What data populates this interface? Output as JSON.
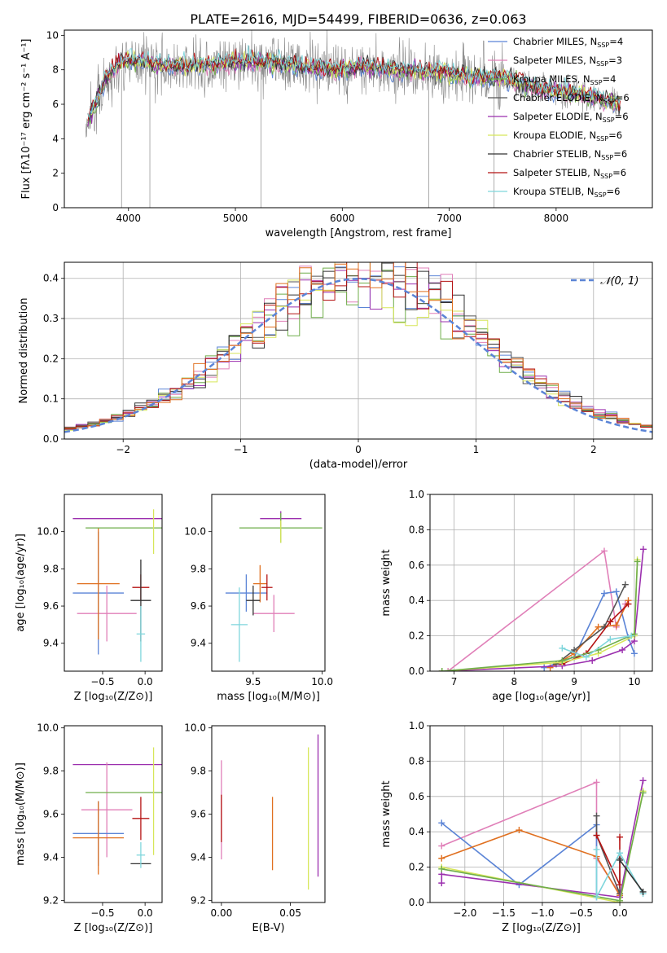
{
  "page_title": "PLATE=2616, MJD=54499, FIBERID=0636, z=0.063",
  "colors": {
    "Chabrier MILES": "#5b84d6",
    "Salpeter MILES": "#e07fb8",
    "Kroupa MILES": "#6fae4a",
    "Chabrier ELODIE": "#555555",
    "Salpeter ELODIE": "#9b2fae",
    "Kroupa ELODIE": "#d7e65a",
    "Chabrier STELIB": "#333333",
    "Salpeter STELIB": "#b51313",
    "Kroupa STELIB": "#7fd6dc",
    "orange": "#e07020",
    "data_gray": "#888888",
    "normal_curve": "#5b84d6"
  },
  "chart_data": [
    {
      "id": "spectrum",
      "type": "line",
      "title": "PLATE=2616, MJD=54499, FIBERID=0636, z=0.063",
      "xlabel": "wavelength [Angstrom, rest frame]",
      "ylabel": "Flux [fλ10⁻¹⁷ erg cm⁻² s⁻¹ A⁻¹]",
      "xlim": [
        3400,
        8900
      ],
      "ylim": [
        0,
        10.3
      ],
      "xticks": [
        "4000",
        "5000",
        "6000",
        "7000",
        "8000"
      ],
      "yticks": [
        "0",
        "2",
        "4",
        "6",
        "8",
        "10"
      ],
      "grid": false,
      "legend_position": "right",
      "legend": [
        "Chabrier MILES, N<sub>SSP</sub>=4",
        "Salpeter MILES, N<sub>SSP</sub>=3",
        "Kroupa MILES, N<sub>SSP</sub>=4",
        "Chabrier ELODIE, N<sub>SSP</sub>=6",
        "Salpeter ELODIE, N<sub>SSP</sub>=6",
        "Kroupa ELODIE, N<sub>SSP</sub>=6",
        "Chabrier STELIB, N<sub>SSP</sub>=6",
        "Salpeter STELIB, N<sub>SSP</sub>=6",
        "Kroupa STELIB, N<sub>SSP</sub>=6"
      ],
      "series_colors": [
        "#5b84d6",
        "#e07fb8",
        "#6fae4a",
        "#555555",
        "#9b2fae",
        "#d7e65a",
        "#333333",
        "#b51313",
        "#7fd6dc"
      ],
      "continuum": {
        "x": [
          3600,
          3700,
          3800,
          3900,
          4000,
          4100,
          4300,
          4500,
          4800,
          5000,
          5200,
          5500,
          5800,
          6000,
          6200,
          6500,
          6800,
          7000,
          7200,
          7500,
          7800,
          8000,
          8200,
          8400,
          8600
        ],
        "y": [
          4.8,
          6.2,
          7.6,
          8.3,
          8.6,
          8.5,
          8.3,
          8.2,
          8.3,
          8.4,
          8.5,
          8.3,
          8.1,
          8.0,
          8.2,
          8.0,
          7.9,
          7.8,
          7.6,
          7.5,
          7.0,
          6.8,
          6.6,
          6.3,
          6.0
        ]
      }
    },
    {
      "id": "residuals",
      "type": "histogram",
      "xlabel": "(data-model)/error",
      "ylabel": "Normed distribution",
      "xlim": [
        -2.5,
        2.5
      ],
      "ylim": [
        0,
        0.44
      ],
      "xticks": [
        "−2",
        "−1",
        "0",
        "1",
        "2"
      ],
      "yticks": [
        "0.0",
        "0.1",
        "0.2",
        "0.3",
        "0.4"
      ],
      "grid": true,
      "legend_position": "top-right",
      "legend": [
        "𝒩(0, 1)"
      ],
      "bins": [
        -2.5,
        2.5,
        50
      ],
      "series_count": 9,
      "series_colors": [
        "#5b84d6",
        "#e07fb8",
        "#6fae4a",
        "#555555",
        "#9b2fae",
        "#d7e65a",
        "#333333",
        "#b51313",
        "#e07020"
      ]
    },
    {
      "id": "age-vs-Z",
      "type": "errorbar",
      "xlabel": "Z [log₁₀(Z/Z⊙)]",
      "ylabel": "age  [log₁₀(age/yr)]",
      "xlim": [
        -0.95,
        0.2
      ],
      "ylim": [
        9.25,
        10.2
      ],
      "xticks": [
        "−0.5",
        "0.0"
      ],
      "yticks": [
        "9.4",
        "9.6",
        "9.8",
        "10.0"
      ],
      "points": [
        {
          "c": "#5b84d6",
          "x": -0.55,
          "xe": 0.3,
          "y": 9.67,
          "ye": 0.33
        },
        {
          "c": "#e07fb8",
          "x": -0.45,
          "xe": 0.35,
          "y": 9.56,
          "ye": 0.15
        },
        {
          "c": "#e07020",
          "x": -0.55,
          "xe": 0.25,
          "y": 9.72,
          "ye": 0.3
        },
        {
          "c": "#9b2fae",
          "x": -0.3,
          "xe": 0.55,
          "y": 10.07,
          "ye": 0.0
        },
        {
          "c": "#6fae4a",
          "x": -0.25,
          "xe": 0.45,
          "y": 10.02,
          "ye": 0.0
        },
        {
          "c": "#d7e65a",
          "x": 0.1,
          "xe": 0.0,
          "y": 10.0,
          "ye": 0.12
        },
        {
          "c": "#b51313",
          "x": -0.05,
          "xe": 0.1,
          "y": 9.7,
          "ye": 0.07
        },
        {
          "c": "#333333",
          "x": -0.05,
          "xe": 0.12,
          "y": 9.63,
          "ye": 0.22
        },
        {
          "c": "#7fd6dc",
          "x": -0.05,
          "xe": 0.05,
          "y": 9.45,
          "ye": 0.15
        }
      ]
    },
    {
      "id": "age-vs-mass",
      "type": "errorbar",
      "xlabel": "mass [log₁₀(M/M⊙)]",
      "ylabel": "",
      "xlim": [
        9.2,
        10.02
      ],
      "ylim": [
        9.25,
        10.2
      ],
      "xticks": [
        "9.5",
        "10.0"
      ],
      "yticks": [
        "9.4",
        "9.6",
        "9.8",
        "10.0"
      ],
      "points": [
        {
          "c": "#5b84d6",
          "x": 9.45,
          "xe": 0.15,
          "y": 9.67,
          "ye": 0.1
        },
        {
          "c": "#e07fb8",
          "x": 9.65,
          "xe": 0.15,
          "y": 9.56,
          "ye": 0.1
        },
        {
          "c": "#e07020",
          "x": 9.55,
          "xe": 0.05,
          "y": 9.72,
          "ye": 0.1
        },
        {
          "c": "#9b2fae",
          "x": 9.7,
          "xe": 0.15,
          "y": 10.07,
          "ye": 0.04
        },
        {
          "c": "#6fae4a",
          "x": 9.7,
          "xe": 0.3,
          "y": 10.02,
          "ye": 0.08
        },
        {
          "c": "#d7e65a",
          "x": 9.7,
          "xe": 0.0,
          "y": 10.0,
          "ye": 0.06
        },
        {
          "c": "#b51313",
          "x": 9.6,
          "xe": 0.04,
          "y": 9.7,
          "ye": 0.07
        },
        {
          "c": "#333333",
          "x": 9.5,
          "xe": 0.05,
          "y": 9.63,
          "ye": 0.08
        },
        {
          "c": "#7fd6dc",
          "x": 9.4,
          "xe": 0.06,
          "y": 9.5,
          "ye": 0.2
        }
      ]
    },
    {
      "id": "mass-weight-vs-age",
      "type": "line",
      "xlabel": "age  [log₁₀(age/yr)]",
      "ylabel": "mass weight",
      "xlim": [
        6.6,
        10.3
      ],
      "ylim": [
        0,
        1.0
      ],
      "xticks": [
        "7",
        "8",
        "9",
        "10"
      ],
      "yticks": [
        "0.0",
        "0.2",
        "0.4",
        "0.6",
        "0.8",
        "1.0"
      ],
      "grid": true,
      "series": [
        {
          "c": "#e07fb8",
          "x": [
            6.9,
            9.5,
            9.7,
            9.85
          ],
          "y": [
            0.0,
            0.68,
            0.25,
            0.38
          ]
        },
        {
          "c": "#5b84d6",
          "x": [
            8.5,
            9.0,
            9.5,
            9.7,
            9.9,
            10.0
          ],
          "y": [
            0.02,
            0.08,
            0.44,
            0.45,
            0.19,
            0.1
          ]
        },
        {
          "c": "#e07020",
          "x": [
            8.6,
            9.0,
            9.4,
            9.7,
            9.9
          ],
          "y": [
            0.02,
            0.1,
            0.25,
            0.26,
            0.4
          ]
        },
        {
          "c": "#555555",
          "x": [
            8.7,
            9.0,
            9.5,
            9.85
          ],
          "y": [
            0.04,
            0.12,
            0.25,
            0.49
          ]
        },
        {
          "c": "#b51313",
          "x": [
            8.8,
            9.2,
            9.6,
            9.9
          ],
          "y": [
            0.04,
            0.1,
            0.28,
            0.38
          ]
        },
        {
          "c": "#9b2fae",
          "x": [
            6.8,
            8.8,
            9.3,
            9.8,
            10.0,
            10.15
          ],
          "y": [
            0.0,
            0.03,
            0.06,
            0.12,
            0.17,
            0.69
          ]
        },
        {
          "c": "#d7e65a",
          "x": [
            6.8,
            8.8,
            9.4,
            10.0,
            10.05
          ],
          "y": [
            0.0,
            0.05,
            0.1,
            0.2,
            0.63
          ]
        },
        {
          "c": "#6fae4a",
          "x": [
            6.8,
            8.8,
            9.4,
            10.0,
            10.05
          ],
          "y": [
            0.0,
            0.06,
            0.12,
            0.21,
            0.62
          ]
        },
        {
          "c": "#7fd6dc",
          "x": [
            8.8,
            9.2,
            9.6,
            9.95
          ],
          "y": [
            0.13,
            0.08,
            0.18,
            0.2
          ]
        }
      ]
    },
    {
      "id": "mass-vs-Z",
      "type": "errorbar",
      "xlabel": "Z [log₁₀(Z/Z⊙)]",
      "ylabel": "mass [log₁₀(M/M⊙)]",
      "xlim": [
        -0.95,
        0.2
      ],
      "ylim": [
        9.19,
        10.01
      ],
      "xticks": [
        "−0.5",
        "0.0"
      ],
      "yticks": [
        "9.2",
        "9.4",
        "9.6",
        "9.8",
        "10.0"
      ],
      "points": [
        {
          "c": "#9b2fae",
          "x": -0.3,
          "xe": 0.55,
          "y": 9.83,
          "ye": 0.0
        },
        {
          "c": "#e07fb8",
          "x": -0.45,
          "xe": 0.3,
          "y": 9.62,
          "ye": 0.22
        },
        {
          "c": "#6fae4a",
          "x": -0.25,
          "xe": 0.45,
          "y": 9.7,
          "ye": 0.0
        },
        {
          "c": "#5b84d6",
          "x": -0.55,
          "xe": 0.3,
          "y": 9.51,
          "ye": 0.15
        },
        {
          "c": "#e07020",
          "x": -0.55,
          "xe": 0.3,
          "y": 9.49,
          "ye": 0.17
        },
        {
          "c": "#d7e65a",
          "x": 0.1,
          "xe": 0.0,
          "y": 9.66,
          "ye": 0.25
        },
        {
          "c": "#b51313",
          "x": -0.05,
          "xe": 0.1,
          "y": 9.58,
          "ye": 0.1
        },
        {
          "c": "#333333",
          "x": -0.05,
          "xe": 0.12,
          "y": 9.37,
          "ye": 0.0
        },
        {
          "c": "#7fd6dc",
          "x": -0.05,
          "xe": 0.05,
          "y": 9.41,
          "ye": 0.06
        }
      ]
    },
    {
      "id": "mass-vs-EBV",
      "type": "errorbar",
      "xlabel": "E(B-V)",
      "ylabel": "",
      "xlim": [
        -0.007,
        0.075
      ],
      "ylim": [
        9.19,
        10.01
      ],
      "xticks": [
        "0.00",
        "0.05"
      ],
      "yticks": [
        "9.2",
        "9.4",
        "9.6",
        "9.8",
        "10.0"
      ],
      "points": [
        {
          "c": "#e07fb8",
          "x": 0.0,
          "xe": 0.0,
          "y": 9.62,
          "ye": 0.23
        },
        {
          "c": "#b51313",
          "x": 0.0,
          "xe": 0.0,
          "y": 9.58,
          "ye": 0.11
        },
        {
          "c": "#e07020",
          "x": 0.037,
          "xe": 0.0,
          "y": 9.51,
          "ye": 0.17
        },
        {
          "c": "#d7e65a",
          "x": 0.063,
          "xe": 0.0,
          "y": 9.58,
          "ye": 0.33
        },
        {
          "c": "#9b2fae",
          "x": 0.07,
          "xe": 0.0,
          "y": 9.64,
          "ye": 0.33
        }
      ]
    },
    {
      "id": "mass-weight-vs-Z",
      "type": "line",
      "xlabel": "Z [log₁₀(Z/Z⊙)]",
      "ylabel": "mass weight",
      "xlim": [
        -2.45,
        0.42
      ],
      "ylim": [
        0,
        1.0
      ],
      "xticks": [
        "−2.0",
        "−1.5",
        "−1.0",
        "−0.5",
        "0.0"
      ],
      "yticks": [
        "0.0",
        "0.2",
        "0.4",
        "0.6",
        "0.8",
        "1.0"
      ],
      "grid": true,
      "series": [
        {
          "c": "#e07fb8",
          "x": [
            -2.3,
            -0.3,
            -0.3,
            0.0
          ],
          "y": [
            0.32,
            0.68,
            0.25,
            0.05
          ]
        },
        {
          "c": "#5b84d6",
          "x": [
            -2.3,
            -1.3,
            -0.3,
            -0.3
          ],
          "y": [
            0.45,
            0.1,
            0.44,
            0.03
          ]
        },
        {
          "c": "#e07020",
          "x": [
            -2.3,
            -1.3,
            -0.3,
            0.0
          ],
          "y": [
            0.25,
            0.41,
            0.26,
            0.04
          ]
        },
        {
          "c": "#555555",
          "x": [
            -0.3,
            -0.3,
            0.0,
            0.0
          ],
          "y": [
            0.49,
            0.38,
            0.05,
            0.25
          ]
        },
        {
          "c": "#b51313",
          "x": [
            -0.3,
            0.0,
            0.0
          ],
          "y": [
            0.38,
            0.1,
            0.37
          ]
        },
        {
          "c": "#9b2fae",
          "x": [
            -2.3,
            -2.3,
            0.0,
            0.3
          ],
          "y": [
            0.11,
            0.16,
            0.03,
            0.69
          ]
        },
        {
          "c": "#d7e65a",
          "x": [
            -2.3,
            0.0,
            0.3
          ],
          "y": [
            0.2,
            0.0,
            0.63
          ]
        },
        {
          "c": "#6fae4a",
          "x": [
            -2.3,
            0.0,
            0.3
          ],
          "y": [
            0.19,
            0.01,
            0.62
          ]
        },
        {
          "c": "#7fd6dc",
          "x": [
            -0.3,
            -0.3,
            0.0,
            0.3
          ],
          "y": [
            0.3,
            0.03,
            0.28,
            0.05
          ]
        },
        {
          "c": "#333333",
          "x": [
            0.0,
            0.3
          ],
          "y": [
            0.24,
            0.06
          ]
        }
      ]
    }
  ]
}
